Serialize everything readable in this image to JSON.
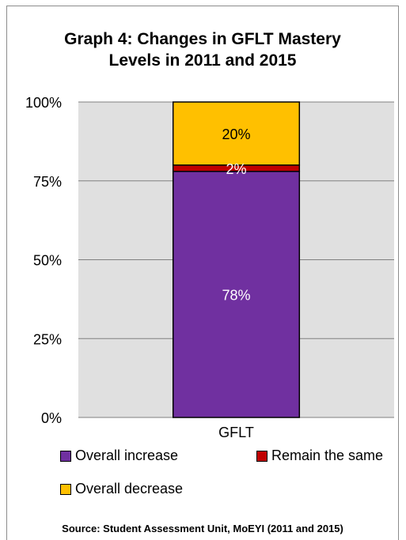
{
  "chart_data": {
    "type": "bar",
    "stacked": true,
    "title_lines": [
      "Graph 4: Changes in GFLT Mastery",
      "Levels in 2011 and 2015"
    ],
    "categories": [
      "GFLT"
    ],
    "series": [
      {
        "name": "Overall increase",
        "values": [
          78
        ],
        "color": "#7030a0",
        "label": "78%"
      },
      {
        "name": "Remain the same",
        "values": [
          2
        ],
        "color": "#c00000",
        "label": "2%"
      },
      {
        "name": "Overall decrease",
        "values": [
          20
        ],
        "color": "#ffc000",
        "label": "20%"
      }
    ],
    "y_ticks": [
      "0%",
      "25%",
      "50%",
      "75%",
      "100%"
    ],
    "ylim": [
      0,
      100
    ],
    "grid": true,
    "legend_position": "bottom",
    "plot_background": "#e0e0e0"
  },
  "source": "Source:  Student Assessment Unit, MoEYI (2011 and 2015)"
}
